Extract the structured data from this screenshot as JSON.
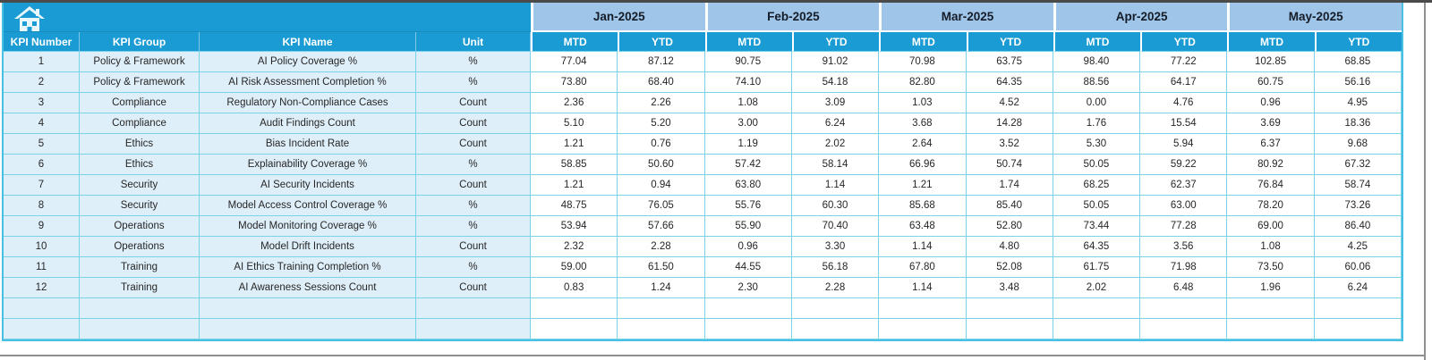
{
  "app": {
    "home_icon": "home-icon"
  },
  "colors": {
    "header_blue": "#1b9bd4",
    "month_header_blue": "#9fc5e8",
    "left_cell_blue": "#dfeff9",
    "grid_line_cyan": "#7ad4e9",
    "outer_border_cyan": "#49c0e2"
  },
  "table": {
    "column_headers": [
      "KPI Number",
      "KPI Group",
      "KPI Name",
      "Unit"
    ],
    "months": [
      "Jan-2025",
      "Feb-2025",
      "Mar-2025",
      "Apr-2025",
      "May-2025"
    ],
    "sub_columns": [
      "MTD",
      "YTD"
    ],
    "rows": [
      {
        "kpi_number": "1",
        "kpi_group": "Policy & Framework",
        "kpi_name": "AI Policy Coverage %",
        "unit": "%",
        "values": [
          "77.04",
          "87.12",
          "90.75",
          "91.02",
          "70.98",
          "63.75",
          "98.40",
          "77.22",
          "102.85",
          "68.85"
        ]
      },
      {
        "kpi_number": "2",
        "kpi_group": "Policy & Framework",
        "kpi_name": "AI Risk Assessment Completion %",
        "unit": "%",
        "values": [
          "73.80",
          "68.40",
          "74.10",
          "54.18",
          "82.80",
          "64.35",
          "88.56",
          "64.17",
          "60.75",
          "56.16"
        ]
      },
      {
        "kpi_number": "3",
        "kpi_group": "Compliance",
        "kpi_name": "Regulatory Non-Compliance Cases",
        "unit": "Count",
        "values": [
          "2.36",
          "2.26",
          "1.08",
          "3.09",
          "1.03",
          "4.52",
          "0.00",
          "4.76",
          "0.96",
          "4.95"
        ]
      },
      {
        "kpi_number": "4",
        "kpi_group": "Compliance",
        "kpi_name": "Audit Findings Count",
        "unit": "Count",
        "values": [
          "5.10",
          "5.20",
          "3.00",
          "6.24",
          "3.68",
          "14.28",
          "1.76",
          "15.54",
          "3.69",
          "18.36"
        ]
      },
      {
        "kpi_number": "5",
        "kpi_group": "Ethics",
        "kpi_name": "Bias Incident Rate",
        "unit": "Count",
        "values": [
          "1.21",
          "0.76",
          "1.19",
          "2.02",
          "2.64",
          "3.52",
          "5.30",
          "5.94",
          "6.37",
          "9.68"
        ]
      },
      {
        "kpi_number": "6",
        "kpi_group": "Ethics",
        "kpi_name": "Explainability Coverage %",
        "unit": "%",
        "values": [
          "58.85",
          "50.60",
          "57.42",
          "58.14",
          "66.96",
          "50.74",
          "50.05",
          "59.22",
          "80.92",
          "67.32"
        ]
      },
      {
        "kpi_number": "7",
        "kpi_group": "Security",
        "kpi_name": "AI Security Incidents",
        "unit": "Count",
        "values": [
          "1.21",
          "0.94",
          "63.80",
          "1.14",
          "1.21",
          "1.74",
          "68.25",
          "62.37",
          "76.84",
          "58.74"
        ]
      },
      {
        "kpi_number": "8",
        "kpi_group": "Security",
        "kpi_name": "Model Access Control Coverage %",
        "unit": "%",
        "values": [
          "48.75",
          "76.05",
          "55.76",
          "60.30",
          "85.68",
          "85.40",
          "50.05",
          "63.00",
          "78.20",
          "73.26"
        ]
      },
      {
        "kpi_number": "9",
        "kpi_group": "Operations",
        "kpi_name": "Model Monitoring Coverage %",
        "unit": "%",
        "values": [
          "53.94",
          "57.66",
          "55.90",
          "70.40",
          "63.48",
          "52.80",
          "73.44",
          "77.28",
          "69.00",
          "86.40"
        ]
      },
      {
        "kpi_number": "10",
        "kpi_group": "Operations",
        "kpi_name": "Model Drift Incidents",
        "unit": "Count",
        "values": [
          "2.32",
          "2.28",
          "0.96",
          "3.30",
          "1.14",
          "4.80",
          "64.35",
          "3.56",
          "1.08",
          "4.25"
        ]
      },
      {
        "kpi_number": "11",
        "kpi_group": "Training",
        "kpi_name": "AI Ethics Training Completion %",
        "unit": "%",
        "values": [
          "59.00",
          "61.50",
          "44.55",
          "56.18",
          "67.80",
          "52.08",
          "61.75",
          "71.98",
          "73.50",
          "60.06"
        ]
      },
      {
        "kpi_number": "12",
        "kpi_group": "Training",
        "kpi_name": "AI Awareness Sessions Count",
        "unit": "Count",
        "values": [
          "0.83",
          "1.24",
          "2.30",
          "2.28",
          "1.14",
          "3.48",
          "2.02",
          "6.48",
          "1.96",
          "6.24"
        ]
      },
      {
        "kpi_number": "",
        "kpi_group": "",
        "kpi_name": "",
        "unit": "",
        "values": [
          "",
          "",
          "",
          "",
          "",
          "",
          "",
          "",
          "",
          ""
        ]
      },
      {
        "kpi_number": "",
        "kpi_group": "",
        "kpi_name": "",
        "unit": "",
        "values": [
          "",
          "",
          "",
          "",
          "",
          "",
          "",
          "",
          "",
          ""
        ]
      }
    ]
  }
}
